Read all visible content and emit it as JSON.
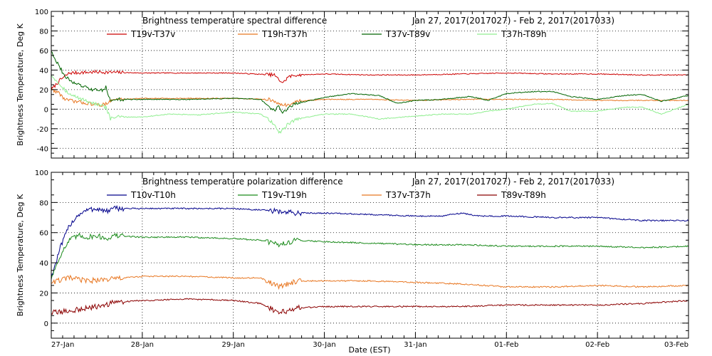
{
  "figure": {
    "xlabel": "Date (EST)"
  },
  "chart_data": [
    {
      "type": "line",
      "title": "Brightness temperature spectral difference",
      "period": "Jan 27, 2017(2017027) - Feb  2, 2017(2017033)",
      "xlabel": "Date (EST)",
      "ylabel": "Brightness Temperature, Deg K",
      "x_ticks": [
        "27-Jan",
        "28-Jan",
        "29-Jan",
        "30-Jan",
        "31-Jan",
        "01-Feb",
        "02-Feb",
        "03-Feb"
      ],
      "xlim": [
        0,
        7
      ],
      "ylim": [
        -50,
        100
      ],
      "y_ticks": [
        -40,
        -20,
        0,
        20,
        40,
        60,
        80,
        100
      ],
      "grid": true,
      "legend": "top",
      "series": [
        {
          "name": "T19v-T37v",
          "color": "#cc0000",
          "points": [
            [
              0,
              20
            ],
            [
              0.1,
              30
            ],
            [
              0.2,
              37
            ],
            [
              0.5,
              38
            ],
            [
              1,
              37
            ],
            [
              1.5,
              37
            ],
            [
              2,
              37
            ],
            [
              2.45,
              35
            ],
            [
              2.5,
              30
            ],
            [
              2.55,
              27
            ],
            [
              2.6,
              33
            ],
            [
              2.7,
              35
            ],
            [
              3,
              36
            ],
            [
              3.5,
              35
            ],
            [
              4,
              35
            ],
            [
              4.5,
              36
            ],
            [
              5,
              37
            ],
            [
              5.5,
              36
            ],
            [
              6,
              36
            ],
            [
              6.5,
              35
            ],
            [
              7,
              35
            ]
          ]
        },
        {
          "name": "T19h-T37h",
          "color": "#e87722",
          "points": [
            [
              0,
              20
            ],
            [
              0.08,
              17
            ],
            [
              0.15,
              10
            ],
            [
              0.25,
              8
            ],
            [
              0.4,
              6
            ],
            [
              0.55,
              4
            ],
            [
              0.65,
              8
            ],
            [
              0.7,
              10
            ],
            [
              1,
              11
            ],
            [
              1.5,
              11
            ],
            [
              2,
              11
            ],
            [
              2.4,
              10
            ],
            [
              2.5,
              5
            ],
            [
              2.6,
              4
            ],
            [
              2.7,
              8
            ],
            [
              3,
              10
            ],
            [
              3.5,
              10
            ],
            [
              4,
              9
            ],
            [
              4.5,
              10
            ],
            [
              5,
              10
            ],
            [
              5.5,
              10
            ],
            [
              6,
              9
            ],
            [
              6.5,
              9
            ],
            [
              7,
              9
            ]
          ]
        },
        {
          "name": "T37v-T89v",
          "color": "#006400",
          "points": [
            [
              0,
              60
            ],
            [
              0.05,
              50
            ],
            [
              0.1,
              42
            ],
            [
              0.15,
              33
            ],
            [
              0.25,
              27
            ],
            [
              0.35,
              23
            ],
            [
              0.45,
              20
            ],
            [
              0.55,
              19
            ],
            [
              0.6,
              23
            ],
            [
              0.65,
              8
            ],
            [
              0.7,
              10
            ],
            [
              1,
              10
            ],
            [
              1.5,
              10
            ],
            [
              2,
              11
            ],
            [
              2.3,
              10
            ],
            [
              2.45,
              -2
            ],
            [
              2.5,
              3
            ],
            [
              2.55,
              -4
            ],
            [
              2.6,
              2
            ],
            [
              2.7,
              6
            ],
            [
              3,
              12
            ],
            [
              3.3,
              16
            ],
            [
              3.6,
              14
            ],
            [
              3.8,
              6
            ],
            [
              4,
              9
            ],
            [
              4.3,
              10
            ],
            [
              4.6,
              13
            ],
            [
              4.8,
              9
            ],
            [
              5,
              16
            ],
            [
              5.3,
              18
            ],
            [
              5.5,
              18
            ],
            [
              5.7,
              13
            ],
            [
              6,
              10
            ],
            [
              6.3,
              14
            ],
            [
              6.5,
              15
            ],
            [
              6.7,
              8
            ],
            [
              7,
              14
            ]
          ]
        },
        {
          "name": "T37h-T89h",
          "color": "#90ee90",
          "points": [
            [
              0,
              35
            ],
            [
              0.1,
              25
            ],
            [
              0.2,
              15
            ],
            [
              0.4,
              8
            ],
            [
              0.6,
              2
            ],
            [
              0.65,
              -10
            ],
            [
              0.7,
              -8
            ],
            [
              1,
              -8
            ],
            [
              1.3,
              -5
            ],
            [
              1.6,
              -6
            ],
            [
              2,
              -3
            ],
            [
              2.3,
              -5
            ],
            [
              2.45,
              -15
            ],
            [
              2.5,
              -25
            ],
            [
              2.55,
              -20
            ],
            [
              2.6,
              -15
            ],
            [
              2.7,
              -10
            ],
            [
              3,
              -5
            ],
            [
              3.3,
              -5
            ],
            [
              3.6,
              -10
            ],
            [
              4,
              -7
            ],
            [
              4.3,
              -5
            ],
            [
              4.6,
              -5
            ],
            [
              4.8,
              -2
            ],
            [
              5,
              0
            ],
            [
              5.3,
              5
            ],
            [
              5.5,
              6
            ],
            [
              5.7,
              -2
            ],
            [
              6,
              -2
            ],
            [
              6.3,
              2
            ],
            [
              6.5,
              2
            ],
            [
              6.7,
              -5
            ],
            [
              7,
              5
            ]
          ]
        }
      ]
    },
    {
      "type": "line",
      "title": "Brightness temperature polarization difference",
      "period": "Jan 27, 2017(2017027) - Feb  2, 2017(2017033)",
      "xlabel": "Date (EST)",
      "ylabel": "Brightness Temperature, Deg K",
      "x_ticks": [
        "27-Jan",
        "28-Jan",
        "29-Jan",
        "30-Jan",
        "31-Jan",
        "01-Feb",
        "02-Feb",
        "03-Feb"
      ],
      "xlim": [
        0,
        7
      ],
      "ylim": [
        -10,
        100
      ],
      "y_ticks": [
        0,
        20,
        40,
        60,
        80,
        100
      ],
      "grid": true,
      "legend": "top",
      "series": [
        {
          "name": "T10v-T10h",
          "color": "#00008b",
          "points": [
            [
              0,
              30
            ],
            [
              0.1,
              50
            ],
            [
              0.2,
              65
            ],
            [
              0.3,
              72
            ],
            [
              0.4,
              75
            ],
            [
              0.5,
              76
            ],
            [
              0.6,
              74
            ],
            [
              0.7,
              76
            ],
            [
              1,
              76
            ],
            [
              1.5,
              76
            ],
            [
              2,
              76
            ],
            [
              2.3,
              75
            ],
            [
              2.5,
              74
            ],
            [
              2.7,
              73
            ],
            [
              3,
              73
            ],
            [
              3.5,
              72
            ],
            [
              4,
              71
            ],
            [
              4.3,
              71
            ],
            [
              4.5,
              73
            ],
            [
              4.7,
              71
            ],
            [
              5,
              71
            ],
            [
              5.5,
              70
            ],
            [
              6,
              70
            ],
            [
              6.5,
              68
            ],
            [
              7,
              68
            ]
          ]
        },
        {
          "name": "T19v-T19h",
          "color": "#1a8a1a",
          "points": [
            [
              0,
              30
            ],
            [
              0.1,
              45
            ],
            [
              0.2,
              55
            ],
            [
              0.3,
              58
            ],
            [
              0.4,
              57
            ],
            [
              0.5,
              58
            ],
            [
              0.6,
              56
            ],
            [
              0.7,
              58
            ],
            [
              1,
              57
            ],
            [
              1.5,
              57
            ],
            [
              2,
              56
            ],
            [
              2.3,
              55
            ],
            [
              2.5,
              52
            ],
            [
              2.7,
              55
            ],
            [
              3,
              54
            ],
            [
              3.5,
              53
            ],
            [
              4,
              52
            ],
            [
              4.5,
              52
            ],
            [
              5,
              51
            ],
            [
              5.5,
              51
            ],
            [
              6,
              51
            ],
            [
              6.5,
              50
            ],
            [
              7,
              51
            ]
          ]
        },
        {
          "name": "T37v-T37h",
          "color": "#e87722",
          "points": [
            [
              0,
              27
            ],
            [
              0.2,
              30
            ],
            [
              0.4,
              28
            ],
            [
              0.6,
              29
            ],
            [
              0.8,
              30
            ],
            [
              1,
              31
            ],
            [
              1.5,
              31
            ],
            [
              2,
              30
            ],
            [
              2.3,
              30
            ],
            [
              2.5,
              24
            ],
            [
              2.6,
              26
            ],
            [
              2.7,
              28
            ],
            [
              3,
              28
            ],
            [
              3.5,
              28
            ],
            [
              4,
              27
            ],
            [
              4.5,
              26
            ],
            [
              5,
              24
            ],
            [
              5.5,
              24
            ],
            [
              6,
              25
            ],
            [
              6.5,
              24
            ],
            [
              7,
              25
            ]
          ]
        },
        {
          "name": "T89v-T89h",
          "color": "#8b0000",
          "points": [
            [
              0,
              7
            ],
            [
              0.2,
              8
            ],
            [
              0.4,
              10
            ],
            [
              0.6,
              12
            ],
            [
              0.7,
              14
            ],
            [
              1,
              15
            ],
            [
              1.5,
              16
            ],
            [
              2,
              15
            ],
            [
              2.3,
              13
            ],
            [
              2.5,
              7
            ],
            [
              2.6,
              8
            ],
            [
              2.7,
              10
            ],
            [
              3,
              11
            ],
            [
              3.5,
              11
            ],
            [
              4,
              11
            ],
            [
              4.5,
              11
            ],
            [
              5,
              12
            ],
            [
              5.5,
              12
            ],
            [
              6,
              12
            ],
            [
              6.5,
              13
            ],
            [
              7,
              15
            ]
          ]
        }
      ]
    }
  ]
}
